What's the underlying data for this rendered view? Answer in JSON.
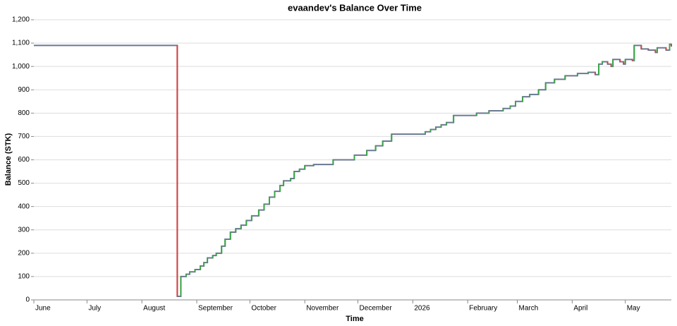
{
  "chart_data": {
    "type": "step-line",
    "title": "evaandev's Balance Over Time",
    "x_label": "Time",
    "y_label": "Balance (STK)",
    "xlim": [
      "2025-06-01",
      "2026-05-27"
    ],
    "xticks": [
      {
        "value": "2025-06-01",
        "label": "June"
      },
      {
        "value": "2025-07-01",
        "label": "July"
      },
      {
        "value": "2025-08-01",
        "label": "August"
      },
      {
        "value": "2025-09-01",
        "label": "September"
      },
      {
        "value": "2025-10-01",
        "label": "October"
      },
      {
        "value": "2025-11-01",
        "label": "November"
      },
      {
        "value": "2025-12-01",
        "label": "December"
      },
      {
        "value": "2026-01-01",
        "label": "2026"
      },
      {
        "value": "2026-02-01",
        "label": "February"
      },
      {
        "value": "2026-03-01",
        "label": "March"
      },
      {
        "value": "2026-04-01",
        "label": "April"
      },
      {
        "value": "2026-05-01",
        "label": "May"
      }
    ],
    "ylim": [
      0,
      1200
    ],
    "yticks": [
      0,
      100,
      200,
      300,
      400,
      500,
      600,
      700,
      800,
      900,
      {
        "value": 1000,
        "label": "1,000"
      },
      {
        "value": 1100,
        "label": "1,100"
      },
      {
        "value": 1200,
        "label": "1,200"
      }
    ],
    "grid": true,
    "color": "#6b7893",
    "up_color": "#3aa845",
    "down_color": "#e0403a",
    "x": [
      "2025-06-01",
      "2025-08-21",
      "2025-08-23",
      "2025-08-26",
      "2025-08-28",
      "2025-08-31",
      "2025-09-03",
      "2025-09-05",
      "2025-09-07",
      "2025-09-10",
      "2025-09-12",
      "2025-09-15",
      "2025-09-17",
      "2025-09-20",
      "2025-09-23",
      "2025-09-26",
      "2025-09-29",
      "2025-10-02",
      "2025-10-06",
      "2025-10-09",
      "2025-10-12",
      "2025-10-15",
      "2025-10-18",
      "2025-10-20",
      "2025-10-24",
      "2025-10-26",
      "2025-10-29",
      "2025-11-01",
      "2025-11-06",
      "2025-11-17",
      "2025-11-29",
      "2025-12-06",
      "2025-12-11",
      "2025-12-15",
      "2025-12-20",
      "2026-01-08",
      "2026-01-11",
      "2026-01-14",
      "2026-01-17",
      "2026-01-20",
      "2026-01-24",
      "2026-02-06",
      "2026-02-13",
      "2026-02-21",
      "2026-02-25",
      "2026-02-28",
      "2026-03-04",
      "2026-03-08",
      "2026-03-13",
      "2026-03-17",
      "2026-03-22",
      "2026-03-28",
      "2026-04-04",
      "2026-04-10",
      "2026-04-14",
      "2026-04-16",
      "2026-04-18",
      "2026-04-21",
      "2026-04-23",
      "2026-04-24",
      "2026-04-28",
      "2026-04-30",
      "2026-05-01",
      "2026-05-05",
      "2026-05-06",
      "2026-05-10",
      "2026-05-14",
      "2026-05-18",
      "2026-05-19",
      "2026-05-24",
      "2026-05-26",
      "2026-05-27"
    ],
    "values": [
      1090,
      15,
      100,
      110,
      120,
      130,
      145,
      160,
      180,
      190,
      200,
      230,
      260,
      290,
      305,
      320,
      340,
      360,
      385,
      410,
      440,
      465,
      490,
      510,
      520,
      550,
      560,
      575,
      580,
      600,
      620,
      640,
      660,
      680,
      710,
      720,
      730,
      740,
      750,
      760,
      790,
      800,
      810,
      820,
      830,
      850,
      870,
      880,
      900,
      930,
      945,
      960,
      970,
      975,
      965,
      1010,
      1020,
      1010,
      1000,
      1030,
      1020,
      1010,
      1030,
      1025,
      1090,
      1075,
      1070,
      1060,
      1080,
      1070,
      1095,
      1085
    ]
  }
}
